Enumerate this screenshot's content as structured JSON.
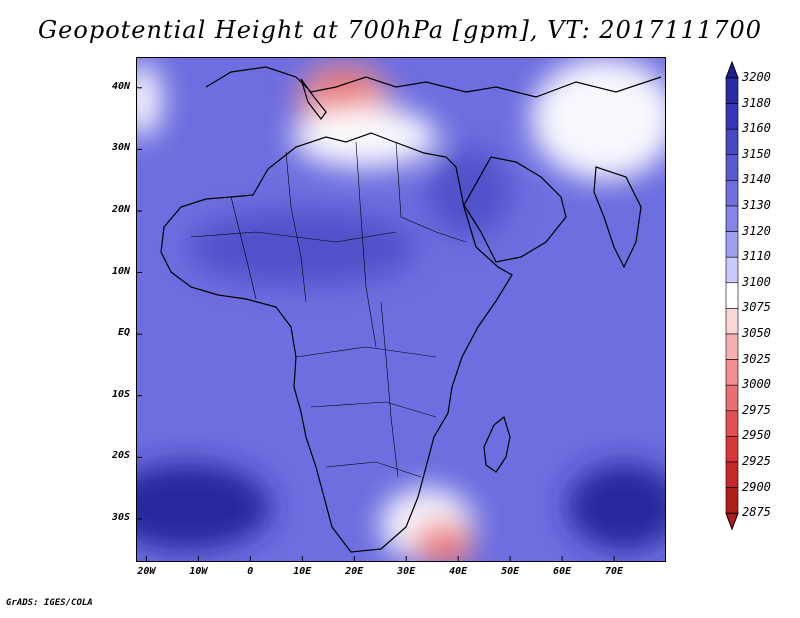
{
  "title": "Geopotential Height at 700hPa [gpm], VT: 2017111700",
  "credit": "GrADS: IGES/COLA",
  "map": {
    "lon_range": [
      -22,
      80
    ],
    "lat_range": [
      -37,
      45
    ],
    "lat_labels": [
      "40N",
      "30N",
      "20N",
      "10N",
      "EQ",
      "10S",
      "20S",
      "30S"
    ],
    "lat_values": [
      40,
      30,
      20,
      10,
      0,
      -10,
      -20,
      -30
    ],
    "lon_labels": [
      "20W",
      "10W",
      "0",
      "10E",
      "20E",
      "30E",
      "40E",
      "50E",
      "60E",
      "70E"
    ],
    "lon_values": [
      -20,
      -10,
      0,
      10,
      20,
      30,
      40,
      50,
      60,
      70
    ],
    "background_color": "#6e6ee0",
    "features": [
      {
        "name": "north-atlantic-high",
        "lon": -21,
        "lat": 38,
        "rx": 4,
        "ry": 6,
        "color": "#ffffff"
      },
      {
        "name": "mediterranean-low",
        "lon": 18,
        "lat": 38,
        "rx": 9,
        "ry": 6,
        "color": "#f08f8f"
      },
      {
        "name": "mediterranean-low-core",
        "lon": 18,
        "lat": 39,
        "rx": 4,
        "ry": 3,
        "color": "#e86a6a"
      },
      {
        "name": "mediterranean-ridge",
        "lon": 22,
        "lat": 32,
        "rx": 14,
        "ry": 5,
        "color": "#ffffff"
      },
      {
        "name": "asia-high",
        "lon": 68,
        "lat": 35,
        "rx": 14,
        "ry": 10,
        "color": "#ffffff"
      },
      {
        "name": "arabia-high",
        "lon": 42,
        "lat": 23,
        "rx": 8,
        "ry": 7,
        "color": "#5050c8"
      },
      {
        "name": "west-africa-high",
        "lon": 10,
        "lat": 14,
        "rx": 22,
        "ry": 6,
        "color": "#5050c8"
      },
      {
        "name": "south-atlantic-high",
        "lon": -12,
        "lat": -28,
        "rx": 16,
        "ry": 7,
        "color": "#24249a"
      },
      {
        "name": "south-indian-high",
        "lon": 72,
        "lat": -28,
        "rx": 11,
        "ry": 7,
        "color": "#24249a"
      },
      {
        "name": "south-africa-trough",
        "lon": 34,
        "lat": -31,
        "rx": 9,
        "ry": 6,
        "color": "#ffffff"
      },
      {
        "name": "agulhas-low",
        "lon": 37,
        "lat": -34,
        "rx": 6,
        "ry": 4,
        "color": "#f08f8f"
      },
      {
        "name": "agulhas-low-core",
        "lon": 37,
        "lat": -35,
        "rx": 3,
        "ry": 2,
        "color": "#e86a6a"
      }
    ]
  },
  "colorbar": {
    "levels": [
      "3200",
      "3180",
      "3160",
      "3150",
      "3140",
      "3130",
      "3120",
      "3110",
      "3100",
      "3075",
      "3050",
      "3025",
      "3000",
      "2975",
      "2950",
      "2925",
      "2900",
      "2875"
    ],
    "colors": [
      "#1e1e8c",
      "#2a2aa6",
      "#3636b8",
      "#4848c4",
      "#5a5ad0",
      "#6e6ee0",
      "#8484ea",
      "#a0a0f2",
      "#c8c8fa",
      "#ffffff",
      "#fbd6d6",
      "#f5b0b0",
      "#f08f8f",
      "#e87070",
      "#e05252",
      "#d63838",
      "#c62828",
      "#b01c1c"
    ]
  }
}
